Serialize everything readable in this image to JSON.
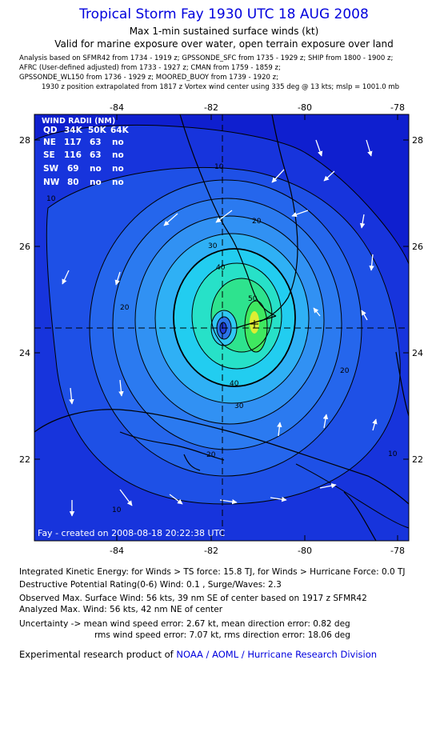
{
  "header": {
    "title": "Tropical Storm Fay 1930 UTC 18 AUG 2008",
    "subtitle1": "Max 1-min sustained surface winds (kt)",
    "subtitle2": "Valid for marine exposure over water, open terrain exposure over land"
  },
  "sources": [
    "Analysis based on   SFMR42 from 1734 - 1919 z;  GPSSONDE_SFC from 1735 - 1929 z;  SHIP from 1800 - 1900 z;",
    "AFRC (User-defined adjusted) from 1733 - 1927 z;  CMAN from 1759 - 1859 z;",
    "GPSSONDE_WL150 from 1736 - 1929 z;  MOORED_BUOY from 1739 - 1920 z;",
    "1930 z position extrapolated from 1817 z Vortex wind center using 335 deg @ 13 kts; mslp = 1001.0 mb"
  ],
  "map": {
    "lon_ticks": [
      "-84",
      "-82",
      "-80",
      "-78"
    ],
    "lat_ticks": [
      "28",
      "26",
      "24",
      "22"
    ],
    "lon_range": [
      -85.8,
      -77.8
    ],
    "lat_range": [
      20.5,
      28.5
    ],
    "center": {
      "lon": -81.7,
      "lat": 24.5
    },
    "contour_labels": [
      "10",
      "10",
      "20",
      "20",
      "20",
      "20",
      "30",
      "30",
      "40",
      "40",
      "50",
      "10",
      "10"
    ],
    "credit": "Fay - created on 2008-08-18 20:22:38 UTC",
    "colors": {
      "outer": "#0f1fcf",
      "mid": "#3a8ff5",
      "cyan": "#18d4ef",
      "green": "#2ee38e",
      "yellow": "#ddee33"
    }
  },
  "wind_radii": {
    "title": "WIND RADII (NM)",
    "header": [
      "QD",
      "34K",
      "50K",
      "64K"
    ],
    "rows": [
      [
        "NE",
        "117",
        "63",
        "no"
      ],
      [
        "SE",
        "116",
        "63",
        "no"
      ],
      [
        "SW",
        "69",
        "no",
        "no"
      ],
      [
        "NW",
        "80",
        "no",
        "no"
      ]
    ]
  },
  "footer": {
    "ike": "Integrated Kinetic Energy:  for Winds > TS force: 15.8 TJ,  for Winds > Hurricane Force: 0.0 TJ",
    "dpr": "Destructive Potential Rating(0-6)   Wind: 0.1 , Surge/Waves: 2.3",
    "obs": "Observed Max. Surface Wind: 56 kts, 39 nm SE of center based on 1917 z SFMR42",
    "analyzed": "Analyzed Max. Wind: 56 kts, 42 nm NE of center",
    "unc1": "Uncertainty -> mean wind speed error: 2.67 kt,   mean direction error: 0.82 deg",
    "unc2": "rms wind speed error: 7.07 kt,   rms direction error: 18.06 deg",
    "product_prefix": "Experimental research product of ",
    "product_org": "NOAA / AOML / Hurricane Research Division"
  }
}
